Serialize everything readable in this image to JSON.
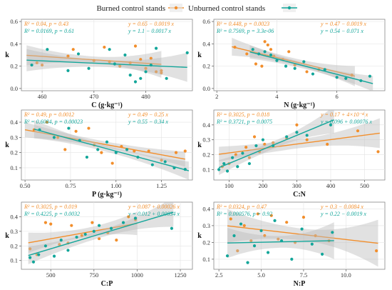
{
  "legend": {
    "items": [
      {
        "name": "Burned control stands",
        "color": "#f28e2b"
      },
      {
        "name": "Unburned control stands",
        "color": "#13a69a"
      }
    ],
    "placement": "top-center"
  },
  "colors": {
    "burned": "#f28e2b",
    "unburned": "#13a69a",
    "band": "#bdbdbd",
    "grid": "#e3e3e3"
  },
  "chart_data": [
    {
      "type": "scatter",
      "xlabel": "C (g·kg⁻¹)",
      "ylabel": "k",
      "xlim": [
        456,
        489
      ],
      "ylim": [
        -0.02,
        0.62
      ],
      "xticks": [
        460,
        470,
        480
      ],
      "yticks": [
        0,
        0.2,
        0.4,
        0.6
      ],
      "ytick_labels": [
        "0.0",
        "0.2",
        "0.4",
        "0.6"
      ],
      "annotations": {
        "burned_stats": "R² = 0.04, p = 0.43",
        "burned_eq": "y = 0.65 − 0.0019 x",
        "unburned_stats": "R² = 0.0169, p = 0.61",
        "unburned_eq": "y = 1.1 − 0.0017 x"
      },
      "series": [
        {
          "name": "Burned control stands",
          "group": "burned",
          "points": [
            [
              459,
              0.23
            ],
            [
              460,
              0.21
            ],
            [
              465,
              0.29
            ],
            [
              466,
              0.35
            ],
            [
              470,
              0.25
            ],
            [
              472,
              0.37
            ],
            [
              473,
              0.24
            ],
            [
              475,
              0.2
            ],
            [
              477,
              0.23
            ],
            [
              478,
              0.38
            ],
            [
              479,
              0.26
            ],
            [
              480,
              0.18
            ],
            [
              481,
              0.27
            ],
            [
              482,
              0.15
            ],
            [
              483,
              0.16
            ],
            [
              483,
              0.14
            ]
          ],
          "fit_x": [
            457,
            483
          ],
          "band_halfwidth": [
            0.09,
            0.03,
            0.12
          ]
        },
        {
          "name": "Unburned control stands",
          "group": "unburned",
          "points": [
            [
              458,
              0.21
            ],
            [
              461,
              0.35
            ],
            [
              465,
              0.16
            ],
            [
              467,
              0.31
            ],
            [
              469,
              0.18
            ],
            [
              473,
              0.35
            ],
            [
              474,
              0.22
            ],
            [
              477,
              0.12
            ],
            [
              479,
              0.09
            ],
            [
              480,
              0.15
            ],
            [
              481,
              0.21
            ],
            [
              482,
              0.36
            ],
            [
              484,
              0.09
            ],
            [
              488,
              0.32
            ],
            [
              476,
              0.3
            ],
            [
              478,
              0.06
            ]
          ],
          "fit_x": [
            457,
            488
          ],
          "band_halfwidth": [
            0.1,
            0.03,
            0.13
          ]
        }
      ]
    },
    {
      "type": "scatter",
      "xlabel": "N (g·kg⁻¹)",
      "ylabel": "k",
      "xlim": [
        1.9,
        7.6
      ],
      "ylim": [
        -0.02,
        0.62
      ],
      "xticks": [
        2,
        4,
        6
      ],
      "yticks": [
        0,
        0.2,
        0.4,
        0.6
      ],
      "ytick_labels": [
        "0.0",
        "0.2",
        "0.4",
        "0.6"
      ],
      "annotations": {
        "burned_stats": "R² = 0.448, p = 0.0023",
        "burned_eq": "y = 0.47 − 0.0019 x",
        "unburned_stats": "R² = 0.7569, p = 3.3e-06",
        "unburned_eq": "y = 0.54 − 0.071 x"
      },
      "series": [
        {
          "name": "Burned control stands",
          "group": "burned",
          "points": [
            [
              2.6,
              0.37
            ],
            [
              3.0,
              0.31
            ],
            [
              3.3,
              0.22
            ],
            [
              3.5,
              0.2
            ],
            [
              3.6,
              0.42
            ],
            [
              3.7,
              0.39
            ],
            [
              3.8,
              0.35
            ],
            [
              3.9,
              0.29
            ],
            [
              4.2,
              0.26
            ],
            [
              4.4,
              0.33
            ],
            [
              4.6,
              0.21
            ],
            [
              5.0,
              0.15
            ],
            [
              5.4,
              0.17
            ],
            [
              6.5,
              0.12
            ]
          ],
          "fit_x": [
            2.5,
            6.6
          ],
          "band_halfwidth": [
            0.08,
            0.03,
            0.09
          ]
        },
        {
          "name": "Unburned control stands",
          "group": "unburned",
          "points": [
            [
              3.2,
              0.35
            ],
            [
              3.4,
              0.31
            ],
            [
              3.6,
              0.33
            ],
            [
              3.8,
              0.3
            ],
            [
              4.0,
              0.25
            ],
            [
              4.3,
              0.2
            ],
            [
              4.6,
              0.18
            ],
            [
              4.9,
              0.24
            ],
            [
              5.2,
              0.13
            ],
            [
              5.6,
              0.17
            ],
            [
              6.0,
              0.1
            ],
            [
              6.3,
              0.09
            ],
            [
              6.8,
              0.07
            ],
            [
              7.1,
              0.11
            ]
          ],
          "fit_x": [
            3.1,
            7.2
          ],
          "band_halfwidth": [
            0.06,
            0.025,
            0.07
          ]
        }
      ]
    },
    {
      "type": "scatter",
      "xlabel": "P (g·kg⁻¹)",
      "ylabel": "k",
      "xlim": [
        0.48,
        1.42
      ],
      "ylim": [
        0.02,
        0.48
      ],
      "xticks": [
        0.5,
        0.75,
        1.0,
        1.25
      ],
      "xtick_labels": [
        "0.50",
        "0.75",
        "1.00",
        "1.25"
      ],
      "yticks": [
        0.1,
        0.2,
        0.3,
        0.4
      ],
      "ytick_labels": [
        "0.1",
        "0.2",
        "0.3",
        "0.4"
      ],
      "annotations": {
        "burned_stats": "R² = 0.49, p = 0.0012",
        "burned_eq": "y = 0.49 − 0.25 x",
        "unburned_stats": "R² = 0.6084, p = 0.00023",
        "unburned_eq": "y = 0.55 − 0.34 x"
      },
      "series": [
        {
          "name": "Burned control stands",
          "group": "burned",
          "points": [
            [
              0.55,
              0.35
            ],
            [
              0.62,
              0.4
            ],
            [
              0.68,
              0.3
            ],
            [
              0.72,
              0.22
            ],
            [
              0.78,
              0.34
            ],
            [
              0.85,
              0.36
            ],
            [
              0.88,
              0.25
            ],
            [
              0.92,
              0.2
            ],
            [
              0.98,
              0.13
            ],
            [
              1.03,
              0.24
            ],
            [
              1.1,
              0.21
            ],
            [
              1.18,
              0.21
            ],
            [
              1.25,
              0.15
            ],
            [
              1.33,
              0.2
            ],
            [
              1.38,
              0.21
            ]
          ],
          "fit_x": [
            0.5,
            1.38
          ],
          "band_halfwidth": [
            0.05,
            0.02,
            0.05
          ]
        },
        {
          "name": "Unburned control stands",
          "group": "unburned",
          "points": [
            [
              0.58,
              0.35
            ],
            [
              0.66,
              0.3
            ],
            [
              0.74,
              0.36
            ],
            [
              0.8,
              0.28
            ],
            [
              0.84,
              0.17
            ],
            [
              0.9,
              0.22
            ],
            [
              0.95,
              0.27
            ],
            [
              1.0,
              0.2
            ],
            [
              1.06,
              0.22
            ],
            [
              1.12,
              0.17
            ],
            [
              1.2,
              0.12
            ],
            [
              1.27,
              0.14
            ],
            [
              1.32,
              0.1
            ],
            [
              1.38,
              0.09
            ]
          ],
          "fit_x": [
            0.55,
            1.4
          ],
          "band_halfwidth": [
            0.06,
            0.02,
            0.06
          ]
        }
      ]
    },
    {
      "type": "scatter",
      "xlabel": "C:N",
      "ylabel": "k",
      "xlim": [
        55,
        560
      ],
      "ylim": [
        0.03,
        0.5
      ],
      "xticks": [
        100,
        200,
        300,
        400,
        500
      ],
      "yticks": [
        0.1,
        0.2,
        0.3,
        0.4
      ],
      "ytick_labels": [
        "0.1",
        "0.2",
        "0.3",
        "0.4"
      ],
      "annotations": {
        "burned_stats": "R² = 0.3025, p = 0.018",
        "burned_eq": "y = 0.17 + 4×10⁻⁴ x",
        "unburned_stats": "R² = 0.3721, p = 0.0075",
        "unburned_eq": "y = 0.096 + 0.00076 x"
      },
      "series": [
        {
          "name": "Burned control stands",
          "group": "burned",
          "points": [
            [
              80,
              0.12
            ],
            [
              100,
              0.14
            ],
            [
              120,
              0.2
            ],
            [
              150,
              0.25
            ],
            [
              160,
              0.18
            ],
            [
              175,
              0.32
            ],
            [
              190,
              0.22
            ],
            [
              205,
              0.27
            ],
            [
              230,
              0.28
            ],
            [
              270,
              0.31
            ],
            [
              300,
              0.4
            ],
            [
              330,
              0.3
            ],
            [
              390,
              0.27
            ],
            [
              480,
              0.36
            ],
            [
              540,
              0.22
            ]
          ],
          "fit_x": [
            70,
            545
          ],
          "band_halfwidth": [
            0.05,
            0.03,
            0.1
          ]
        },
        {
          "name": "Unburned control stands",
          "group": "unburned",
          "points": [
            [
              70,
              0.1
            ],
            [
              85,
              0.14
            ],
            [
              95,
              0.09
            ],
            [
              110,
              0.18
            ],
            [
              125,
              0.12
            ],
            [
              140,
              0.21
            ],
            [
              160,
              0.14
            ],
            [
              180,
              0.26
            ],
            [
              200,
              0.3
            ],
            [
              230,
              0.26
            ],
            [
              270,
              0.32
            ],
            [
              300,
              0.35
            ],
            [
              330,
              0.33
            ],
            [
              400,
              0.4
            ]
          ],
          "fit_x": [
            70,
            410
          ],
          "band_halfwidth": [
            0.05,
            0.025,
            0.09
          ]
        }
      ]
    },
    {
      "type": "scatter",
      "xlabel": "C:P",
      "ylabel": "k",
      "xlim": [
        330,
        1320
      ],
      "ylim": [
        0.04,
        0.5
      ],
      "xticks": [
        500,
        750,
        1000,
        1250
      ],
      "yticks": [
        0.1,
        0.2,
        0.3,
        0.4
      ],
      "ytick_labels": [
        "0.1",
        "0.2",
        "0.3",
        "0.4"
      ],
      "annotations": {
        "burned_stats": "R² = 0.3025, p = 0.019",
        "burned_eq": "y = 0.087 + 0.00026 x",
        "unburned_stats": "R² = 0.4225, p = 0.0032",
        "unburned_eq": "y = 0.012 + 0.00034 x"
      },
      "series": [
        {
          "name": "Burned control stands",
          "group": "burned",
          "points": [
            [
              380,
              0.18
            ],
            [
              420,
              0.14
            ],
            [
              470,
              0.36
            ],
            [
              500,
              0.35
            ],
            [
              550,
              0.21
            ],
            [
              600,
              0.22
            ],
            [
              620,
              0.34
            ],
            [
              680,
              0.27
            ],
            [
              740,
              0.36
            ],
            [
              780,
              0.25
            ],
            [
              830,
              0.29
            ],
            [
              880,
              0.24
            ],
            [
              950,
              0.4
            ],
            [
              990,
              0.38
            ]
          ],
          "fit_x": [
            370,
            1000
          ],
          "band_halfwidth": [
            0.07,
            0.03,
            0.08
          ]
        },
        {
          "name": "Unburned control stands",
          "group": "unburned",
          "points": [
            [
              380,
              0.12
            ],
            [
              400,
              0.09
            ],
            [
              430,
              0.14
            ],
            [
              470,
              0.2
            ],
            [
              520,
              0.13
            ],
            [
              560,
              0.24
            ],
            [
              600,
              0.17
            ],
            [
              650,
              0.26
            ],
            [
              700,
              0.28
            ],
            [
              750,
              0.3
            ],
            [
              780,
              0.34
            ],
            [
              850,
              0.32
            ],
            [
              920,
              0.36
            ],
            [
              990,
              0.39
            ],
            [
              1200,
              0.32
            ]
          ],
          "fit_x": [
            370,
            1210
          ],
          "band_halfwidth": [
            0.06,
            0.025,
            0.1
          ]
        }
      ]
    },
    {
      "type": "scatter",
      "xlabel": "N:P",
      "ylabel": "k",
      "xlim": [
        2.2,
        12.3
      ],
      "ylim": [
        0.04,
        0.44
      ],
      "xticks": [
        2.5,
        5.0,
        7.5,
        10.0
      ],
      "xtick_labels": [
        "2.5",
        "5.0",
        "7.5",
        "10.0"
      ],
      "yticks": [
        0.1,
        0.2,
        0.3,
        0.4
      ],
      "ytick_labels": [
        "0.1",
        "0.2",
        "0.3",
        "0.4"
      ],
      "annotations": {
        "burned_stats": "R² = 0.0324, p = 0.47",
        "burned_eq": "y = 0.3 − 0.0084 x",
        "unburned_stats": "R² = 0.000576, p = 0.92",
        "unburned_eq": "y = 0.22 − 0.0019 x"
      },
      "series": [
        {
          "name": "Burned control stands",
          "group": "burned",
          "points": [
            [
              3.2,
              0.34
            ],
            [
              3.6,
              0.15
            ],
            [
              4.0,
              0.3
            ],
            [
              4.4,
              0.21
            ],
            [
              4.8,
              0.37
            ],
            [
              5.2,
              0.24
            ],
            [
              5.6,
              0.36
            ],
            [
              6.0,
              0.22
            ],
            [
              6.5,
              0.32
            ],
            [
              7.0,
              0.2
            ],
            [
              7.5,
              0.35
            ],
            [
              8.2,
              0.24
            ],
            [
              9.0,
              0.21
            ],
            [
              11.8,
              0.15
            ]
          ],
          "fit_x": [
            3.0,
            11.9
          ],
          "band_halfwidth": [
            0.1,
            0.035,
            0.14
          ]
        },
        {
          "name": "Unburned control stands",
          "group": "unburned",
          "points": [
            [
              3.0,
              0.12
            ],
            [
              3.4,
              0.24
            ],
            [
              3.8,
              0.31
            ],
            [
              4.2,
              0.08
            ],
            [
              4.6,
              0.18
            ],
            [
              5.0,
              0.27
            ],
            [
              5.4,
              0.14
            ],
            [
              5.8,
              0.33
            ],
            [
              6.2,
              0.21
            ],
            [
              6.8,
              0.1
            ],
            [
              7.4,
              0.28
            ],
            [
              8.0,
              0.19
            ],
            [
              8.6,
              0.13
            ],
            [
              9.2,
              0.26
            ]
          ],
          "fit_x": [
            3.0,
            9.3
          ],
          "band_halfwidth": [
            0.09,
            0.035,
            0.11
          ]
        }
      ]
    }
  ]
}
